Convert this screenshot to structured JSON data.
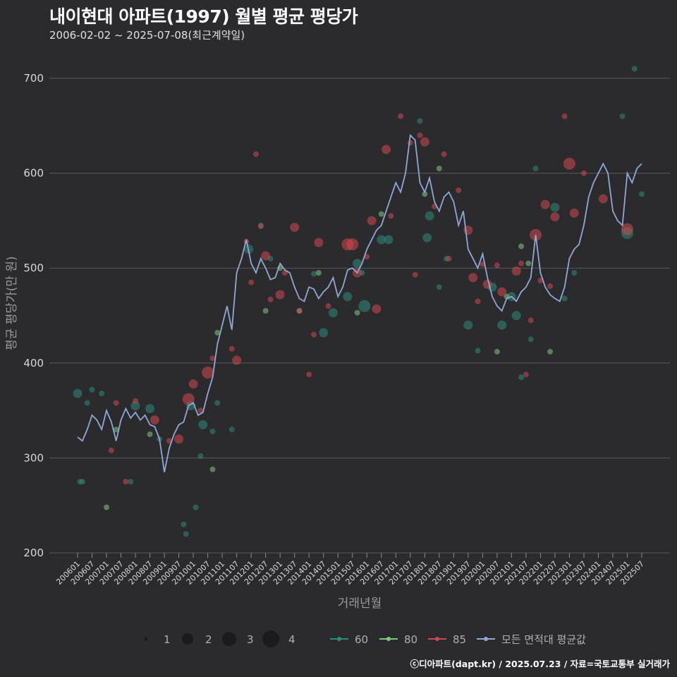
{
  "title": "내이현대 아파트(1997) 월별 평균 평당가",
  "subtitle": "2006-02-02 ~ 2025-07-08(최근계약일)",
  "footer": "ⓒ디아파트(dapt.kr) / 2025.07.23 / 자료=국토교통부 실거래가",
  "colors": {
    "bg": "#2b2b2d",
    "grid": "#5a5a5c",
    "s60": "#2e8b7a",
    "s80": "#7fc97f",
    "s85": "#d0484f",
    "avg": "#8fa8d8"
  },
  "chart_data": {
    "type": "line+scatter",
    "title": "내이현대 아파트(1997) 월별 평균 평당가",
    "xlabel": "거래년월",
    "ylabel": "평균 평당가(만 원)",
    "ylim": [
      200,
      720
    ],
    "yticks": [
      200,
      300,
      400,
      500,
      600,
      700
    ],
    "x_tick_labels": [
      "200601",
      "200607",
      "200701",
      "200707",
      "200801",
      "200807",
      "200901",
      "200907",
      "201001",
      "201007",
      "201101",
      "201107",
      "201201",
      "201207",
      "201301",
      "201307",
      "201401",
      "201407",
      "201501",
      "201507",
      "201601",
      "201607",
      "201701",
      "201707",
      "201801",
      "201807",
      "201901",
      "201907",
      "202001",
      "202007",
      "202101",
      "202107",
      "202201",
      "202207",
      "202301",
      "202307",
      "202401",
      "202407",
      "202501",
      "202507"
    ],
    "size_legend": {
      "title": "",
      "values": [
        1,
        2,
        3,
        4
      ]
    },
    "color_legend": [
      {
        "key": "s60",
        "label": "60"
      },
      {
        "key": "s80",
        "label": "80"
      },
      {
        "key": "s85",
        "label": "85"
      },
      {
        "key": "avg",
        "label": "모든 면적대 평균값"
      }
    ],
    "average_line": {
      "name": "모든 면적대 평균값",
      "x": [
        "200601",
        "200603",
        "200605",
        "200607",
        "200609",
        "200611",
        "200701",
        "200703",
        "200705",
        "200707",
        "200709",
        "200711",
        "200801",
        "200803",
        "200805",
        "200807",
        "200809",
        "200811",
        "200901",
        "200903",
        "200905",
        "200907",
        "200909",
        "200911",
        "201001",
        "201003",
        "201005",
        "201007",
        "201009",
        "201011",
        "201101",
        "201103",
        "201105",
        "201107",
        "201109",
        "201111",
        "201201",
        "201203",
        "201205",
        "201207",
        "201209",
        "201211",
        "201301",
        "201303",
        "201305",
        "201307",
        "201309",
        "201311",
        "201401",
        "201403",
        "201405",
        "201407",
        "201409",
        "201411",
        "201501",
        "201503",
        "201505",
        "201507",
        "201509",
        "201511",
        "201601",
        "201603",
        "201605",
        "201607",
        "201609",
        "201611",
        "201701",
        "201703",
        "201705",
        "201707",
        "201709",
        "201711",
        "201801",
        "201803",
        "201805",
        "201807",
        "201809",
        "201811",
        "201901",
        "201903",
        "201905",
        "201907",
        "201909",
        "201911",
        "202001",
        "202003",
        "202005",
        "202007",
        "202009",
        "202011",
        "202101",
        "202103",
        "202105",
        "202107",
        "202109",
        "202111",
        "202201",
        "202203",
        "202205",
        "202207",
        "202209",
        "202211",
        "202301",
        "202303",
        "202305",
        "202307",
        "202309",
        "202311",
        "202401",
        "202403",
        "202405",
        "202407",
        "202409",
        "202411",
        "202501",
        "202503",
        "202505",
        "202507"
      ],
      "values": [
        322,
        318,
        330,
        345,
        340,
        330,
        350,
        338,
        318,
        340,
        352,
        342,
        348,
        340,
        345,
        335,
        333,
        320,
        285,
        310,
        325,
        335,
        338,
        355,
        358,
        345,
        348,
        368,
        385,
        420,
        440,
        460,
        435,
        495,
        510,
        530,
        505,
        495,
        510,
        500,
        488,
        490,
        505,
        498,
        495,
        480,
        468,
        465,
        480,
        478,
        468,
        475,
        480,
        490,
        470,
        480,
        498,
        500,
        495,
        505,
        520,
        530,
        540,
        545,
        560,
        575,
        590,
        580,
        600,
        640,
        635,
        590,
        580,
        595,
        570,
        560,
        575,
        580,
        570,
        545,
        560,
        520,
        510,
        500,
        515,
        490,
        470,
        460,
        455,
        468,
        470,
        465,
        475,
        480,
        490,
        535,
        495,
        480,
        472,
        468,
        465,
        480,
        510,
        520,
        525,
        545,
        575,
        590,
        600,
        610,
        600,
        560,
        550,
        545,
        600,
        590,
        605,
        610
      ]
    },
    "series": [
      {
        "name": "60",
        "key": "s60",
        "points": [
          [
            "200601",
            368,
            2
          ],
          [
            "200602",
            275,
            1
          ],
          [
            "200603",
            275,
            1
          ],
          [
            "200605",
            358,
            1
          ],
          [
            "200607",
            372,
            1
          ],
          [
            "200611",
            368,
            1
          ],
          [
            "200711",
            275,
            1
          ],
          [
            "200801",
            355,
            2
          ],
          [
            "200807",
            352,
            2
          ],
          [
            "200811",
            320,
            1
          ],
          [
            "200909",
            230,
            1
          ],
          [
            "200910",
            220,
            1
          ],
          [
            "200912",
            355,
            2
          ],
          [
            "201002",
            248,
            1
          ],
          [
            "201004",
            302,
            1
          ],
          [
            "201005",
            335,
            2
          ],
          [
            "201009",
            328,
            1
          ],
          [
            "201011",
            358,
            1
          ],
          [
            "201105",
            330,
            1
          ],
          [
            "201112",
            520,
            2
          ],
          [
            "201205",
            545,
            1
          ],
          [
            "201209",
            510,
            1
          ],
          [
            "201403",
            494,
            1
          ],
          [
            "201407",
            432,
            2
          ],
          [
            "201411",
            453,
            2
          ],
          [
            "201505",
            470,
            2
          ],
          [
            "201509",
            505,
            2
          ],
          [
            "201511",
            495,
            1
          ],
          [
            "201512",
            460,
            3
          ],
          [
            "201607",
            530,
            2
          ],
          [
            "201610",
            530,
            2
          ],
          [
            "201711",
            655,
            1
          ],
          [
            "201802",
            532,
            2
          ],
          [
            "201803",
            555,
            2
          ],
          [
            "201807",
            480,
            1
          ],
          [
            "201810",
            510,
            1
          ],
          [
            "201907",
            440,
            2
          ],
          [
            "201911",
            413,
            1
          ],
          [
            "202005",
            480,
            2
          ],
          [
            "202009",
            440,
            2
          ],
          [
            "202101",
            470,
            2
          ],
          [
            "202103",
            450,
            2
          ],
          [
            "202105",
            385,
            1
          ],
          [
            "202109",
            425,
            1
          ],
          [
            "202111",
            605,
            1
          ],
          [
            "202207",
            564,
            2
          ],
          [
            "202211",
            468,
            1
          ],
          [
            "202303",
            495,
            1
          ],
          [
            "202411",
            660,
            1
          ],
          [
            "202501",
            537,
            3
          ],
          [
            "202504",
            710,
            1
          ],
          [
            "202507",
            578,
            1
          ]
        ]
      },
      {
        "name": "80",
        "key": "s80",
        "points": [
          [
            "200701",
            248,
            1
          ],
          [
            "200705",
            330,
            1
          ],
          [
            "200807",
            325,
            1
          ],
          [
            "201009",
            288,
            1
          ],
          [
            "201011",
            432,
            1
          ],
          [
            "201207",
            455,
            1
          ],
          [
            "201301",
            500,
            1
          ],
          [
            "201309",
            455,
            1
          ],
          [
            "201405",
            495,
            1
          ],
          [
            "201509",
            453,
            1
          ],
          [
            "201607",
            557,
            1
          ],
          [
            "201801",
            578,
            1
          ],
          [
            "201807",
            605,
            1
          ],
          [
            "202007",
            412,
            1
          ],
          [
            "202011",
            470,
            1
          ],
          [
            "202105",
            523,
            1
          ],
          [
            "202108",
            505,
            1
          ],
          [
            "202205",
            412,
            1
          ]
        ]
      },
      {
        "name": "85",
        "key": "s85",
        "points": [
          [
            "200703",
            308,
            1
          ],
          [
            "200705",
            358,
            1
          ],
          [
            "200709",
            275,
            1
          ],
          [
            "200801",
            360,
            1
          ],
          [
            "200809",
            340,
            2
          ],
          [
            "200903",
            318,
            1
          ],
          [
            "200907",
            320,
            2
          ],
          [
            "200911",
            362,
            3
          ],
          [
            "201001",
            378,
            2
          ],
          [
            "201004",
            350,
            1
          ],
          [
            "201007",
            390,
            3
          ],
          [
            "201009",
            405,
            1
          ],
          [
            "201105",
            415,
            1
          ],
          [
            "201107",
            403,
            2
          ],
          [
            "201111",
            528,
            1
          ],
          [
            "201201",
            485,
            1
          ],
          [
            "201203",
            620,
            1
          ],
          [
            "201205",
            544,
            1
          ],
          [
            "201207",
            513,
            2
          ],
          [
            "201209",
            467,
            1
          ],
          [
            "201301",
            472,
            2
          ],
          [
            "201303",
            495,
            1
          ],
          [
            "201307",
            543,
            2
          ],
          [
            "201309",
            455,
            1
          ],
          [
            "201401",
            388,
            1
          ],
          [
            "201403",
            430,
            1
          ],
          [
            "201405",
            527,
            2
          ],
          [
            "201409",
            460,
            1
          ],
          [
            "201505",
            525,
            3
          ],
          [
            "201507",
            525,
            3
          ],
          [
            "201509",
            495,
            2
          ],
          [
            "201601",
            512,
            1
          ],
          [
            "201603",
            550,
            2
          ],
          [
            "201605",
            457,
            2
          ],
          [
            "201609",
            625,
            2
          ],
          [
            "201611",
            555,
            1
          ],
          [
            "201703",
            660,
            1
          ],
          [
            "201707",
            632,
            1
          ],
          [
            "201709",
            493,
            1
          ],
          [
            "201711",
            640,
            1
          ],
          [
            "201801",
            633,
            2
          ],
          [
            "201805",
            565,
            1
          ],
          [
            "201809",
            620,
            1
          ],
          [
            "201811",
            510,
            1
          ],
          [
            "201903",
            582,
            1
          ],
          [
            "201907",
            540,
            2
          ],
          [
            "201909",
            490,
            2
          ],
          [
            "201911",
            465,
            1
          ],
          [
            "202001",
            504,
            1
          ],
          [
            "202003",
            483,
            2
          ],
          [
            "202007",
            503,
            1
          ],
          [
            "202009",
            475,
            2
          ],
          [
            "202103",
            497,
            2
          ],
          [
            "202105",
            505,
            1
          ],
          [
            "202107",
            388,
            1
          ],
          [
            "202109",
            445,
            1
          ],
          [
            "202111",
            535,
            3
          ],
          [
            "202201",
            487,
            1
          ],
          [
            "202203",
            567,
            2
          ],
          [
            "202205",
            481,
            1
          ],
          [
            "202207",
            554,
            2
          ],
          [
            "202211",
            660,
            1
          ],
          [
            "202301",
            610,
            3
          ],
          [
            "202303",
            558,
            2
          ],
          [
            "202307",
            600,
            1
          ],
          [
            "202403",
            573,
            2
          ],
          [
            "202501",
            541,
            3
          ]
        ]
      }
    ]
  }
}
